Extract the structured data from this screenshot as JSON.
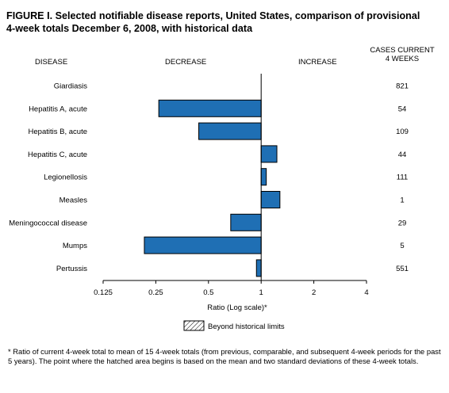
{
  "title_line1": "FIGURE I. Selected notifiable disease reports, United States, comparison of provisional",
  "title_line2": "4-week totals December 6, 2008, with historical data",
  "headers": {
    "disease": "DISEASE",
    "decrease": "DECREASE",
    "increase": "INCREASE",
    "cases_line1": "CASES CURRENT",
    "cases_line2": "4 WEEKS"
  },
  "legend_label": "Beyond historical limits",
  "footnote": "* Ratio of current 4-week total to mean of 15 4-week totals (from previous, comparable, and subsequent 4-week periods for the past 5 years). The point where the hatched area begins is based on the mean and two standard deviations of these 4-week totals.",
  "colors": {
    "bar": "#1f6fb4",
    "baseline": "#000000"
  },
  "chart_data": {
    "type": "bar",
    "orientation": "horizontal",
    "categories": [
      "Giardiasis",
      "Hepatitis A, acute",
      "Hepatitis B, acute",
      "Hepatitis C, acute",
      "Legionellosis",
      "Measles",
      "Meningococcal disease",
      "Mumps",
      "Pertussis"
    ],
    "values": [
      1.0,
      0.26,
      0.44,
      1.23,
      1.07,
      1.28,
      0.67,
      0.215,
      0.94
    ],
    "cases_current_4_weeks": [
      "821",
      "54",
      "109",
      "44",
      "111",
      "1",
      "29",
      "5",
      "551"
    ],
    "xlabel": "Ratio (Log scale)*",
    "x_scale": "log2",
    "xlim": [
      0.125,
      4
    ],
    "xticks": [
      0.125,
      0.25,
      0.5,
      1,
      2,
      4
    ],
    "xtick_labels": [
      "0.125",
      "0.25",
      "0.5",
      "1",
      "2",
      "4"
    ],
    "baseline": 1
  }
}
